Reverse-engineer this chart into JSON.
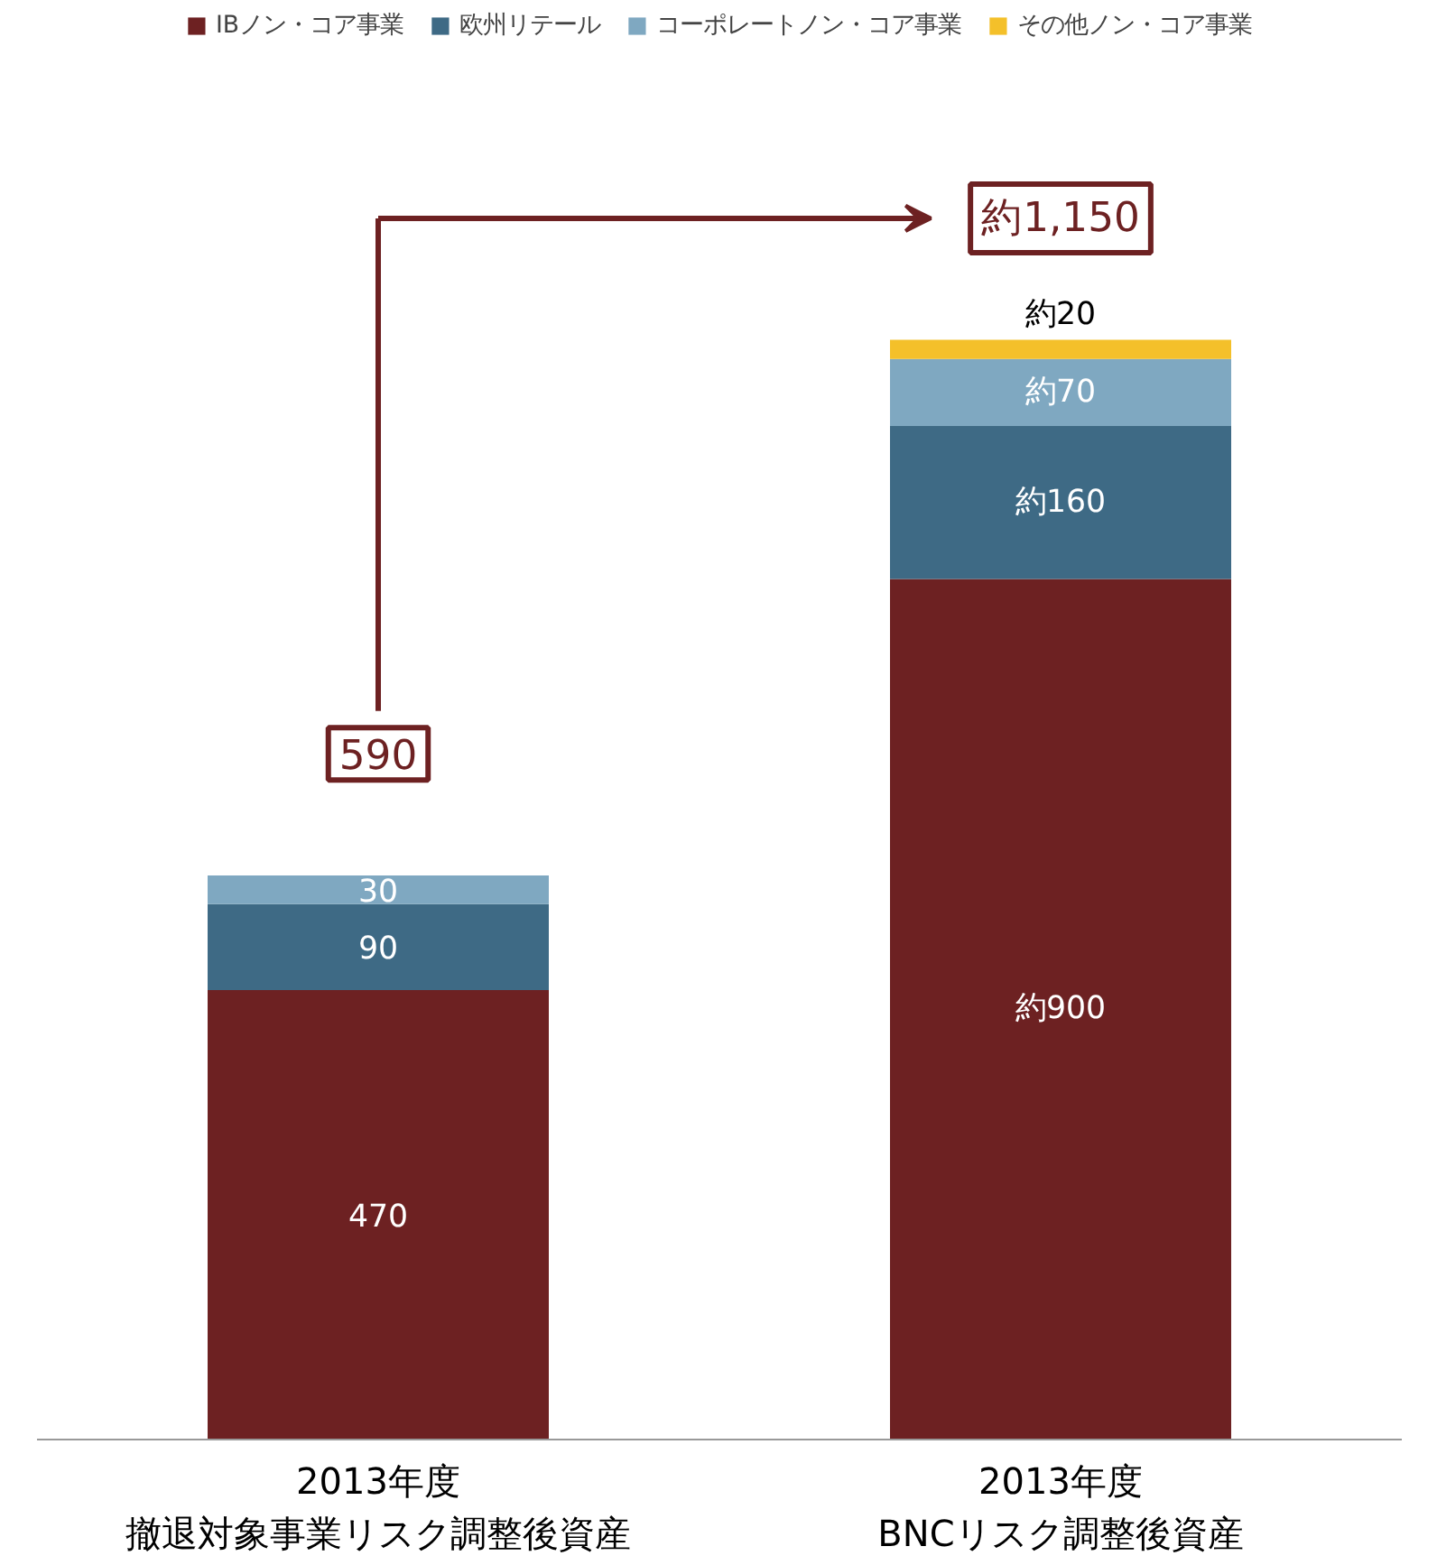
{
  "chart_data": {
    "type": "bar",
    "stacked": true,
    "categories": [
      "2013年度撤退対象事業リスク調整後資産",
      "2013年度BNCリスク調整後資産"
    ],
    "series": [
      {
        "name": "IBノン・コア事業",
        "color": "#6d2122",
        "values": [
          470,
          900
        ],
        "value_labels": [
          "470",
          "約900"
        ]
      },
      {
        "name": "欧州リテール",
        "color": "#3e6a85",
        "values": [
          90,
          160
        ],
        "value_labels": [
          "90",
          "約160"
        ]
      },
      {
        "name": "コーポレートノン・コア事業",
        "color": "#7fa8c1",
        "values": [
          30,
          70
        ],
        "value_labels": [
          "30",
          "約70"
        ]
      },
      {
        "name": "その他ノン・コア事業",
        "color": "#f4c02a",
        "values": [
          null,
          20
        ],
        "value_labels": [
          null,
          "約20"
        ]
      }
    ],
    "totals": [
      "590",
      "約1,150"
    ],
    "legend": "top",
    "grid": false
  }
}
